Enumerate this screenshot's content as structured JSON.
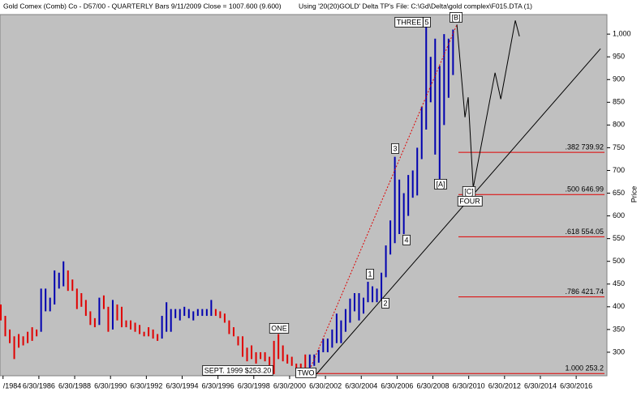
{
  "chart_data": {
    "type": "ohlc",
    "header": [
      "Gold Comex (Comb) Co - D57/00  - QUARTERLY Bars  9/11/2009 Close = 1007.600 (9.600)",
      "Using '20(20)GOLD' Delta TP's",
      "File: C:\\Gd\\Delta\\gold complex\\F015.DTA (1)"
    ],
    "ylabel": "Price",
    "xlim": [
      1984.33,
      2018.08
    ],
    "ylim": [
      250,
      1043
    ],
    "yticks": [
      300,
      350,
      400,
      450,
      500,
      550,
      600,
      650,
      700,
      750,
      800,
      850,
      900,
      950,
      {
        "value": 1000,
        "label": "1,000"
      }
    ],
    "xticks": [
      {
        "value": 1984.5,
        "label": "/1984"
      },
      {
        "value": 1986.5,
        "label": "6/30/1986"
      },
      {
        "value": 1988.5,
        "label": "6/30/1988"
      },
      {
        "value": 1990.5,
        "label": "6/30/1990"
      },
      {
        "value": 1992.5,
        "label": "6/30/1992"
      },
      {
        "value": 1994.5,
        "label": "6/30/1994"
      },
      {
        "value": 1996.5,
        "label": "6/30/1996"
      },
      {
        "value": 1998.5,
        "label": "6/30/1998"
      },
      {
        "value": 2000.5,
        "label": "6/30/2000"
      },
      {
        "value": 2002.5,
        "label": "6/30/2002"
      },
      {
        "value": 2004.5,
        "label": "6/30/2004"
      },
      {
        "value": 2006.5,
        "label": "6/30/2006"
      },
      {
        "value": 2008.5,
        "label": "6/30/2008"
      },
      {
        "value": 2010.5,
        "label": "6/30/2010"
      },
      {
        "value": 2012.5,
        "label": "6/30/2012"
      },
      {
        "value": 2014.5,
        "label": "6/30/2014"
      },
      {
        "value": 2016.5,
        "label": "6/30/2016"
      }
    ],
    "bars": {
      "x": [
        1984.375,
        1984.625,
        1984.875,
        1985.125,
        1985.375,
        1985.625,
        1985.875,
        1986.125,
        1986.375,
        1986.625,
        1986.875,
        1987.125,
        1987.375,
        1987.625,
        1987.875,
        1988.125,
        1988.375,
        1988.625,
        1988.875,
        1989.125,
        1989.375,
        1989.625,
        1989.875,
        1990.125,
        1990.375,
        1990.625,
        1990.875,
        1991.125,
        1991.375,
        1991.625,
        1991.875,
        1992.125,
        1992.375,
        1992.625,
        1992.875,
        1993.125,
        1993.375,
        1993.625,
        1993.875,
        1994.125,
        1994.375,
        1994.625,
        1994.875,
        1995.125,
        1995.375,
        1995.625,
        1995.875,
        1996.125,
        1996.375,
        1996.625,
        1996.875,
        1997.125,
        1997.375,
        1997.625,
        1997.875,
        1998.125,
        1998.375,
        1998.625,
        1998.875,
        1999.125,
        1999.375,
        1999.625,
        1999.875,
        2000.125,
        2000.375,
        2000.625,
        2000.875,
        2001.125,
        2001.375,
        2001.625,
        2001.875,
        2002.125,
        2002.375,
        2002.625,
        2002.875,
        2003.125,
        2003.375,
        2003.625,
        2003.875,
        2004.125,
        2004.375,
        2004.625,
        2004.875,
        2005.125,
        2005.375,
        2005.625,
        2005.875,
        2006.125,
        2006.375,
        2006.625,
        2006.875,
        2007.125,
        2007.375,
        2007.625,
        2007.875,
        2008.125,
        2008.375,
        2008.625,
        2008.875,
        2009.125,
        2009.375,
        2009.625
      ],
      "high": [
        405,
        380,
        350,
        335,
        340,
        335,
        345,
        355,
        350,
        440,
        440,
        420,
        480,
        475,
        500,
        480,
        460,
        440,
        430,
        415,
        390,
        375,
        420,
        425,
        400,
        415,
        405,
        400,
        370,
        370,
        365,
        360,
        345,
        355,
        350,
        340,
        380,
        410,
        395,
        395,
        395,
        400,
        395,
        390,
        395,
        395,
        395,
        415,
        395,
        390,
        385,
        370,
        355,
        335,
        335,
        310,
        315,
        300,
        300,
        300,
        290,
        325,
        340,
        315,
        295,
        290,
        275,
        275,
        295,
        295,
        295,
        305,
        330,
        330,
        350,
        385,
        370,
        395,
        418,
        430,
        430,
        420,
        455,
        445,
        440,
        475,
        535,
        590,
        730,
        680,
        650,
        690,
        700,
        750,
        840,
        1030,
        950,
        990,
        930,
        1000,
        990,
        1010
      ],
      "low": [
        370,
        335,
        320,
        285,
        310,
        315,
        320,
        325,
        335,
        345,
        390,
        390,
        405,
        440,
        445,
        435,
        435,
        395,
        400,
        380,
        360,
        355,
        360,
        395,
        345,
        350,
        370,
        355,
        355,
        350,
        345,
        340,
        335,
        335,
        330,
        325,
        330,
        345,
        345,
        375,
        370,
        380,
        375,
        370,
        380,
        380,
        380,
        380,
        380,
        375,
        365,
        340,
        335,
        315,
        290,
        280,
        285,
        275,
        285,
        280,
        255,
        252,
        285,
        280,
        275,
        270,
        263,
        255,
        255,
        265,
        270,
        277,
        300,
        300,
        310,
        320,
        320,
        345,
        365,
        390,
        370,
        385,
        410,
        410,
        410,
        415,
        465,
        515,
        540,
        560,
        560,
        600,
        640,
        645,
        725,
        790,
        850,
        735,
        680,
        800,
        860,
        910
      ],
      "colors": [
        "#e00000",
        "#e00000",
        "#e00000",
        "#e00000",
        "#e00000",
        "#e00000",
        "#e00000",
        "#e00000",
        "#e00000",
        "#0000b0",
        "#0000b0",
        "#0000b0",
        "#0000b0",
        "#0000b0",
        "#0000b0",
        "#e00000",
        "#e00000",
        "#e00000",
        "#e00000",
        "#e00000",
        "#e00000",
        "#e00000",
        "#0000b0",
        "#e00000",
        "#e00000",
        "#0000b0",
        "#e00000",
        "#e00000",
        "#e00000",
        "#e00000",
        "#e00000",
        "#e00000",
        "#e00000",
        "#e00000",
        "#e00000",
        "#e00000",
        "#0000b0",
        "#0000b0",
        "#0000b0",
        "#0000b0",
        "#0000b0",
        "#0000b0",
        "#0000b0",
        "#0000b0",
        "#0000b0",
        "#0000b0",
        "#0000b0",
        "#0000b0",
        "#e00000",
        "#e00000",
        "#e00000",
        "#e00000",
        "#e00000",
        "#e00000",
        "#e00000",
        "#e00000",
        "#e00000",
        "#e00000",
        "#e00000",
        "#e00000",
        "#e00000",
        "#e00000",
        "#e00000",
        "#e00000",
        "#e00000",
        "#e00000",
        "#e00000",
        "#e00000",
        "#e00000",
        "#0000b0",
        "#0000b0",
        "#0000b0",
        "#0000b0",
        "#0000b0",
        "#0000b0",
        "#0000b0",
        "#0000b0",
        "#0000b0",
        "#0000b0",
        "#0000b0",
        "#0000b0",
        "#0000b0",
        "#0000b0",
        "#0000b0",
        "#0000b0",
        "#0000b0",
        "#0000b0",
        "#0000b0",
        "#0000b0",
        "#0000b0",
        "#0000b0",
        "#0000b0",
        "#0000b0",
        "#0000b0",
        "#0000b0",
        "#0000b0",
        "#0000b0",
        "#0000b0",
        "#0000b0",
        "#0000b0",
        "#0000b0",
        "#0000b0"
      ]
    },
    "fib_levels": [
      {
        "value": 739.92,
        "label": ".382  739.92"
      },
      {
        "value": 646.99,
        "label": ".500  646.99"
      },
      {
        "value": 554.05,
        "label": ".618  554.05"
      },
      {
        "value": 421.74,
        "label": ".786  421.74"
      },
      {
        "value": 253.2,
        "label": "1.000  253.2"
      }
    ],
    "fib_color": "#e00000",
    "channel_line": {
      "x": [
        2001.55,
        2009.84
      ],
      "y": [
        255,
        1021
      ],
      "color": "#e00000"
    },
    "trend_line": {
      "x": [
        2002.0,
        2017.86
      ],
      "y": [
        252,
        968
      ],
      "color": "#000000"
    },
    "projection": {
      "x": [
        2009.84,
        2010.29,
        2010.47,
        2010.75,
        2011.97,
        2012.29,
        2013.1,
        2013.33
      ],
      "y": [
        1021,
        817,
        861,
        662,
        915,
        857,
        1030,
        995
      ],
      "color": "#000000"
    },
    "annotations": [
      "THREE",
      "5",
      "[B]",
      "3",
      "[A]",
      "1",
      "2",
      "4",
      "ONE",
      "TWO",
      "[C]",
      "FOUR",
      "SEPT. 1999  $253.20"
    ]
  }
}
